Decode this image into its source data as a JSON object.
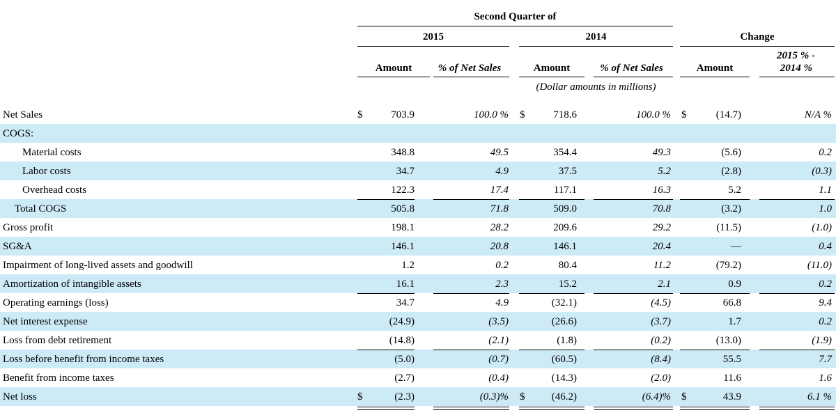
{
  "colors": {
    "band": "#cdeaf7",
    "text": "#000000"
  },
  "header": {
    "quarter": "Second Quarter of",
    "year_a": "2015",
    "year_b": "2014",
    "change": "Change",
    "amount": "Amount",
    "pct_net_sales": "% of Net Sales",
    "pct_change_line1": "2015 % -",
    "pct_change_line2": "2014 %",
    "units": "(Dollar amounts in millions)"
  },
  "rows": [
    {
      "label": "Net Sales",
      "d1": "$",
      "a15": "703.9",
      "p15": "100.0 %",
      "d2": "$",
      "a14": "718.6",
      "p14": "100.0 %",
      "d3": "$",
      "chg": "(14.7)",
      "pchg": "N/A %"
    },
    {
      "label": "COGS:",
      "d1": "",
      "a15": "",
      "p15": "",
      "d2": "",
      "a14": "",
      "p14": "",
      "d3": "",
      "chg": "",
      "pchg": ""
    },
    {
      "label": "Material costs",
      "d1": "",
      "a15": "348.8",
      "p15": "49.5",
      "d2": "",
      "a14": "354.4",
      "p14": "49.3",
      "d3": "",
      "chg": "(5.6)",
      "pchg": "0.2"
    },
    {
      "label": "Labor costs",
      "d1": "",
      "a15": "34.7",
      "p15": "4.9",
      "d2": "",
      "a14": "37.5",
      "p14": "5.2",
      "d3": "",
      "chg": "(2.8)",
      "pchg": "(0.3)"
    },
    {
      "label": "Overhead costs",
      "d1": "",
      "a15": "122.3",
      "p15": "17.4",
      "d2": "",
      "a14": "117.1",
      "p14": "16.3",
      "d3": "",
      "chg": "5.2",
      "pchg": "1.1"
    },
    {
      "label": "Total COGS",
      "d1": "",
      "a15": "505.8",
      "p15": "71.8",
      "d2": "",
      "a14": "509.0",
      "p14": "70.8",
      "d3": "",
      "chg": "(3.2)",
      "pchg": "1.0"
    },
    {
      "label": "Gross profit",
      "d1": "",
      "a15": "198.1",
      "p15": "28.2",
      "d2": "",
      "a14": "209.6",
      "p14": "29.2",
      "d3": "",
      "chg": "(11.5)",
      "pchg": "(1.0)"
    },
    {
      "label": "SG&A",
      "d1": "",
      "a15": "146.1",
      "p15": "20.8",
      "d2": "",
      "a14": "146.1",
      "p14": "20.4",
      "d3": "",
      "chg": "—",
      "pchg": "0.4"
    },
    {
      "label": "Impairment of long-lived assets and goodwill",
      "d1": "",
      "a15": "1.2",
      "p15": "0.2",
      "d2": "",
      "a14": "80.4",
      "p14": "11.2",
      "d3": "",
      "chg": "(79.2)",
      "pchg": "(11.0)"
    },
    {
      "label": "Amortization of intangible assets",
      "d1": "",
      "a15": "16.1",
      "p15": "2.3",
      "d2": "",
      "a14": "15.2",
      "p14": "2.1",
      "d3": "",
      "chg": "0.9",
      "pchg": "0.2"
    },
    {
      "label": "Operating earnings (loss)",
      "d1": "",
      "a15": "34.7",
      "p15": "4.9",
      "d2": "",
      "a14": "(32.1)",
      "p14": "(4.5)",
      "d3": "",
      "chg": "66.8",
      "pchg": "9.4"
    },
    {
      "label": "Net interest expense",
      "d1": "",
      "a15": "(24.9)",
      "p15": "(3.5)",
      "d2": "",
      "a14": "(26.6)",
      "p14": "(3.7)",
      "d3": "",
      "chg": "1.7",
      "pchg": "0.2"
    },
    {
      "label": "Loss from debt retirement",
      "d1": "",
      "a15": "(14.8)",
      "p15": "(2.1)",
      "d2": "",
      "a14": "(1.8)",
      "p14": "(0.2)",
      "d3": "",
      "chg": "(13.0)",
      "pchg": "(1.9)"
    },
    {
      "label": "Loss before benefit from income taxes",
      "d1": "",
      "a15": "(5.0)",
      "p15": "(0.7)",
      "d2": "",
      "a14": "(60.5)",
      "p14": "(8.4)",
      "d3": "",
      "chg": "55.5",
      "pchg": "7.7"
    },
    {
      "label": "Benefit from income taxes",
      "d1": "",
      "a15": "(2.7)",
      "p15": "(0.4)",
      "d2": "",
      "a14": "(14.3)",
      "p14": "(2.0)",
      "d3": "",
      "chg": "11.6",
      "pchg": "1.6"
    },
    {
      "label": "Net loss",
      "d1": "$",
      "a15": "(2.3)",
      "p15": "(0.3)%",
      "d2": "$",
      "a14": "(46.2)",
      "p14": "(6.4)%",
      "d3": "$",
      "chg": "43.9",
      "pchg": "6.1 %"
    }
  ]
}
